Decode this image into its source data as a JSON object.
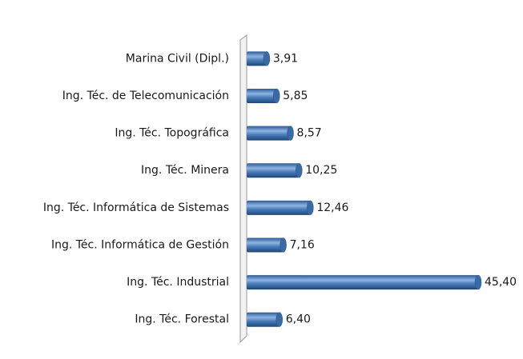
{
  "chart_data": {
    "type": "bar",
    "orientation": "horizontal",
    "categories": [
      "Marina Civil (Dipl.)",
      "Ing. Téc. de Telecomunicación",
      "Ing. Téc. Topográfica",
      "Ing. Téc. Minera",
      "Ing. Téc. Informática de Sistemas",
      "Ing. Téc. Informática de Gestión",
      "Ing. Téc. Industrial",
      "Ing. Téc. Forestal"
    ],
    "values": [
      3.91,
      5.85,
      8.57,
      10.25,
      12.46,
      7.16,
      45.4,
      6.4
    ],
    "value_labels": [
      "3,91",
      "5,85",
      "8,57",
      "10,25",
      "12,46",
      "7,16",
      "45,40",
      "6,40"
    ],
    "color": "#4a7ebb"
  }
}
